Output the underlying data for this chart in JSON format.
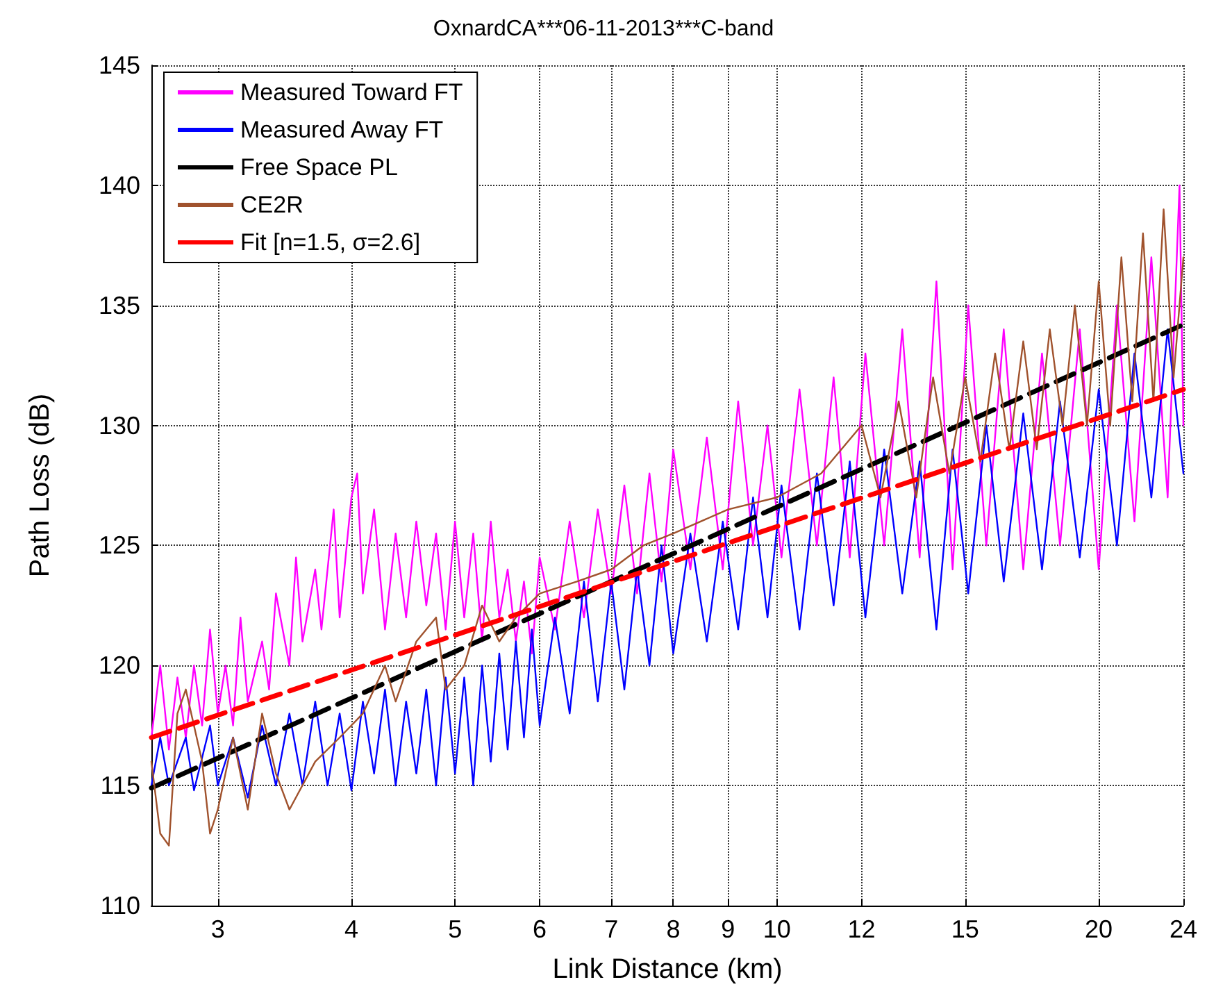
{
  "chart_data": {
    "type": "line",
    "title": "OxnardCA***06-11-2013***C-band",
    "xlabel": "Link Distance (km)",
    "ylabel": "Path Loss (dB)",
    "log": "x",
    "xlim": [
      2.6,
      24
    ],
    "xticks": [
      3,
      4,
      5,
      6,
      7,
      8,
      9,
      10,
      12,
      15,
      20,
      24
    ],
    "ylim": [
      110,
      145
    ],
    "yticks": [
      110,
      115,
      120,
      125,
      130,
      135,
      140,
      145
    ],
    "grid": true,
    "legend": "top left",
    "marker": "none",
    "series": [
      {
        "name": "Measured Toward FT",
        "color": "#ff00ff",
        "line_style": "solid",
        "x": [
          2.6,
          2.65,
          2.7,
          2.75,
          2.8,
          2.85,
          2.9,
          2.95,
          3.0,
          3.05,
          3.1,
          3.15,
          3.2,
          3.3,
          3.35,
          3.4,
          3.5,
          3.55,
          3.6,
          3.7,
          3.75,
          3.85,
          3.9,
          4.0,
          4.05,
          4.1,
          4.2,
          4.3,
          4.4,
          4.5,
          4.6,
          4.7,
          4.8,
          4.9,
          5.0,
          5.1,
          5.2,
          5.3,
          5.4,
          5.5,
          5.6,
          5.7,
          5.8,
          5.9,
          6.0,
          6.2,
          6.4,
          6.6,
          6.8,
          7.0,
          7.2,
          7.4,
          7.6,
          7.8,
          8.0,
          8.3,
          8.6,
          8.9,
          9.2,
          9.5,
          9.8,
          10.1,
          10.5,
          10.9,
          11.3,
          11.7,
          12.1,
          12.6,
          13.1,
          13.6,
          14.1,
          14.6,
          15.1,
          15.7,
          16.3,
          17,
          17.7,
          18.4,
          19.2,
          20,
          20.8,
          21.6,
          22.4,
          23.2,
          23.8,
          24
        ],
        "values": [
          117,
          120,
          116.5,
          119.5,
          117,
          120,
          117.5,
          121.5,
          118,
          120,
          117.5,
          122,
          118.5,
          121,
          119,
          123,
          120,
          124.5,
          121,
          124,
          121.5,
          126.5,
          122,
          127,
          128,
          123,
          126.5,
          121.5,
          125.5,
          122,
          126,
          122.5,
          125.5,
          121.5,
          126,
          122,
          125.5,
          121,
          126,
          122,
          124,
          121,
          123.5,
          120.5,
          124.5,
          121.5,
          126,
          122,
          126.5,
          123,
          127.5,
          123,
          128,
          123.5,
          129,
          124,
          129.5,
          124,
          131,
          125,
          130,
          124.5,
          131.5,
          125,
          132,
          124.5,
          133,
          125,
          134,
          124.5,
          136,
          124,
          135,
          125,
          134,
          124,
          133,
          125,
          134,
          124,
          135,
          126,
          137,
          127,
          140,
          130
        ]
      },
      {
        "name": "Measured Away FT",
        "color": "#0000ff",
        "line_style": "solid",
        "x": [
          2.6,
          2.65,
          2.7,
          2.8,
          2.85,
          2.95,
          3.0,
          3.1,
          3.2,
          3.3,
          3.4,
          3.5,
          3.6,
          3.7,
          3.8,
          3.9,
          4.0,
          4.1,
          4.2,
          4.3,
          4.4,
          4.5,
          4.6,
          4.7,
          4.8,
          4.9,
          5.0,
          5.1,
          5.2,
          5.3,
          5.4,
          5.5,
          5.6,
          5.7,
          5.8,
          5.9,
          6.0,
          6.2,
          6.4,
          6.6,
          6.8,
          7.0,
          7.2,
          7.4,
          7.6,
          7.8,
          8.0,
          8.3,
          8.6,
          8.9,
          9.2,
          9.5,
          9.8,
          10.1,
          10.5,
          10.9,
          11.3,
          11.7,
          12.1,
          12.6,
          13.1,
          13.6,
          14.1,
          14.6,
          15.1,
          15.7,
          16.3,
          17,
          17.7,
          18.4,
          19.2,
          20,
          20.8,
          21.6,
          22.4,
          23.2,
          24
        ],
        "values": [
          115,
          117,
          115,
          117,
          114.8,
          117.5,
          115,
          117,
          114.5,
          117.5,
          115,
          118,
          115,
          118.5,
          115,
          118,
          114.8,
          118.5,
          115.5,
          119,
          115,
          118.5,
          115.5,
          119,
          115,
          119.5,
          115.5,
          119.5,
          115,
          120,
          116,
          120.5,
          116.5,
          121,
          117,
          121.5,
          117.5,
          122,
          118,
          123.5,
          118.5,
          123.5,
          119,
          124,
          120,
          125,
          120.5,
          125.5,
          121,
          126,
          121.5,
          127,
          122,
          127.5,
          121.5,
          128,
          122.5,
          128.5,
          122,
          129,
          123,
          128.5,
          121.5,
          129,
          123,
          130,
          123.5,
          130.5,
          124,
          131,
          124.5,
          131.5,
          125,
          133,
          127,
          134,
          128
        ]
      },
      {
        "name": "Free Space PL",
        "color": "#000000",
        "line_style": "dashed",
        "x": [
          2.6,
          24
        ],
        "values": [
          114.9,
          134.2
        ]
      },
      {
        "name": "CE2R",
        "color": "#a0522d",
        "line_style": "solid",
        "x": [
          2.6,
          2.65,
          2.7,
          2.75,
          2.8,
          2.9,
          2.95,
          3.0,
          3.1,
          3.2,
          3.3,
          3.4,
          3.5,
          3.7,
          3.9,
          4.1,
          4.3,
          4.4,
          4.6,
          4.8,
          4.9,
          5.1,
          5.3,
          5.5,
          5.7,
          6.0,
          6.5,
          7.0,
          7.5,
          8.0,
          9.0,
          10,
          11,
          12,
          12.5,
          13,
          13.5,
          14,
          14.5,
          15,
          15.5,
          16,
          16.5,
          17,
          17.5,
          18,
          18.5,
          19,
          19.5,
          20,
          20.5,
          21,
          21.5,
          22,
          22.5,
          23,
          23.5,
          24
        ],
        "values": [
          116,
          113,
          112.5,
          118,
          119,
          116,
          113,
          114,
          117,
          114,
          118,
          115.5,
          114,
          116,
          117,
          118,
          120,
          118.5,
          121,
          122,
          119,
          120,
          122.5,
          121,
          122,
          123,
          123.5,
          124,
          125,
          125.5,
          126.5,
          127,
          128,
          130,
          127,
          131,
          127,
          132,
          128,
          132,
          128.5,
          133,
          129,
          133.5,
          129,
          134,
          130,
          135,
          130,
          136,
          130,
          137,
          131,
          138,
          131,
          139,
          132,
          137
        ]
      },
      {
        "name": "Fit [n=1.5, σ=2.6]",
        "color": "#ff0000",
        "line_style": "dashed",
        "x": [
          2.6,
          24
        ],
        "values": [
          117.0,
          131.5
        ]
      }
    ]
  }
}
